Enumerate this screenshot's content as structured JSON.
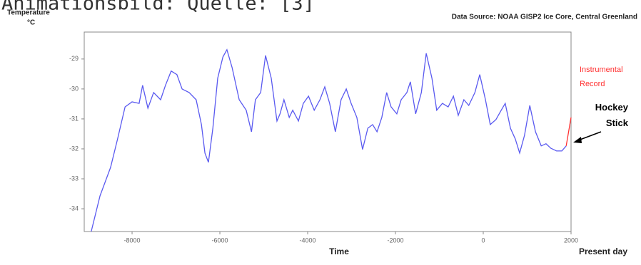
{
  "chart_data": {
    "type": "line",
    "caption": "Animationsbild: Quelle: [3]",
    "ylabel": "Temperature",
    "yunit": "°C",
    "source": "Data Source: NOAA GISP2 Ice Core, Central Greenland",
    "xlabel": "Time",
    "xend_label": "Present day",
    "annotations": [
      "Instrumental Record",
      "Hockey Stick"
    ],
    "xlim": [
      -9090,
      2000
    ],
    "ylim": [
      -34.76,
      -28.1
    ],
    "xticks": [
      -8000,
      -6000,
      -4000,
      -2000,
      0,
      2000
    ],
    "yticks": [
      -29,
      -30,
      -31,
      -32,
      -33,
      -34
    ],
    "series": [
      {
        "color": "#5a5af0",
        "x": [
          -8930,
          -8730,
          -8490,
          -8330,
          -8160,
          -8000,
          -7840,
          -7760,
          -7640,
          -7510,
          -7350,
          -7240,
          -7110,
          -6980,
          -6860,
          -6700,
          -6540,
          -6420,
          -6340,
          -6260,
          -6160,
          -6050,
          -5930,
          -5840,
          -5720,
          -5560,
          -5400,
          -5280,
          -5190,
          -5070,
          -4960,
          -4830,
          -4700,
          -4630,
          -4540,
          -4420,
          -4340,
          -4210,
          -4100,
          -3980,
          -3850,
          -3720,
          -3610,
          -3500,
          -3370,
          -3240,
          -3120,
          -3010,
          -2880,
          -2750,
          -2630,
          -2520,
          -2420,
          -2310,
          -2200,
          -2100,
          -1970,
          -1870,
          -1740,
          -1660,
          -1540,
          -1410,
          -1300,
          -1170,
          -1060,
          -930,
          -800,
          -680,
          -570,
          -440,
          -330,
          -190,
          -80,
          50,
          160,
          290,
          410,
          500,
          620,
          730,
          830,
          940,
          1060,
          1190,
          1320,
          1430,
          1540,
          1670,
          1790,
          1890
        ],
        "values": [
          -34.76,
          -33.57,
          -32.62,
          -31.67,
          -30.6,
          -30.43,
          -30.48,
          -29.88,
          -30.64,
          -30.12,
          -30.36,
          -29.88,
          -29.4,
          -29.52,
          -30.0,
          -30.12,
          -30.36,
          -31.19,
          -32.14,
          -32.45,
          -31.31,
          -29.64,
          -28.93,
          -28.69,
          -29.29,
          -30.36,
          -30.71,
          -31.43,
          -30.36,
          -30.12,
          -28.88,
          -29.64,
          -31.07,
          -30.83,
          -30.36,
          -30.95,
          -30.71,
          -31.07,
          -30.48,
          -30.24,
          -30.71,
          -30.36,
          -29.93,
          -30.48,
          -31.43,
          -30.36,
          -30.0,
          -30.48,
          -30.95,
          -32.02,
          -31.31,
          -31.19,
          -31.43,
          -30.95,
          -30.12,
          -30.6,
          -30.83,
          -30.36,
          -30.12,
          -29.76,
          -30.83,
          -30.12,
          -28.81,
          -29.64,
          -30.71,
          -30.48,
          -30.6,
          -30.24,
          -30.88,
          -30.36,
          -30.55,
          -30.12,
          -29.52,
          -30.36,
          -31.19,
          -31.02,
          -30.71,
          -30.48,
          -31.31,
          -31.67,
          -32.14,
          -31.55,
          -30.55,
          -31.43,
          -31.9,
          -31.83,
          -31.98,
          -32.07,
          -32.07,
          -31.9
        ]
      },
      {
        "color": "#ff3030",
        "x": [
          1890,
          2000
        ],
        "values": [
          -31.9,
          -30.95
        ]
      }
    ]
  }
}
